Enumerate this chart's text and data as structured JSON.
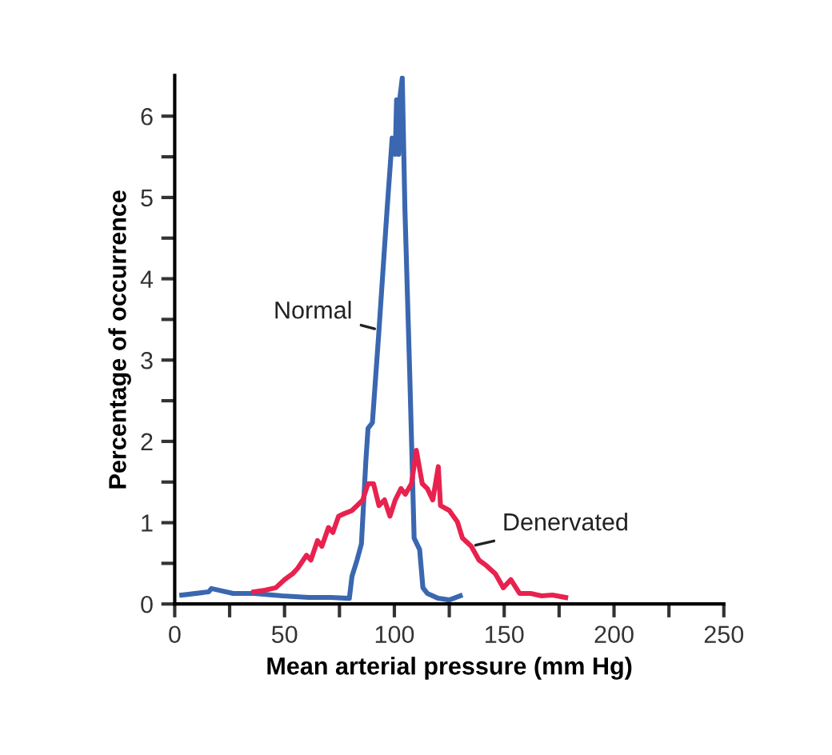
{
  "chart_data": {
    "type": "line",
    "xlabel": "Mean arterial pressure (mm Hg)",
    "ylabel": "Percentage of occurrence",
    "xlim": [
      0,
      250
    ],
    "ylim": [
      0,
      6.5
    ],
    "xticks": [
      0,
      {
        "value": 25,
        "label": null
      },
      50,
      {
        "value": 75,
        "label": null
      },
      100,
      {
        "value": 125,
        "label": null
      },
      150,
      {
        "value": 175,
        "label": null
      },
      200,
      {
        "value": 225,
        "label": null
      },
      250
    ],
    "yticks": [
      0,
      {
        "value": 0.5,
        "label": null
      },
      1,
      {
        "value": 1.5,
        "label": null
      },
      2,
      {
        "value": 2.5,
        "label": null
      },
      3,
      {
        "value": 3.5,
        "label": null
      },
      4,
      {
        "value": 4.5,
        "label": null
      },
      5,
      {
        "value": 5.5,
        "label": null
      },
      6
    ],
    "grid": false,
    "legend": false,
    "marker": "none",
    "line_style": "solid",
    "series": [
      {
        "name": "Normal",
        "color": "#3a67b0",
        "x": [
          3.2,
          15.5,
          16.7,
          26.6,
          36,
          49,
          61,
          71,
          79.5,
          80.7,
          83,
          85,
          87,
          88,
          90,
          93,
          96.7,
          99,
          100.4,
          101,
          102,
          102.4,
          103.6,
          104.8,
          107,
          109,
          111.5,
          113,
          115,
          120,
          125,
          130
        ],
        "values": [
          0.11,
          0.15,
          0.19,
          0.13,
          0.13,
          0.1,
          0.08,
          0.08,
          0.07,
          0.34,
          0.54,
          0.74,
          1.75,
          2.16,
          2.23,
          3.37,
          4.86,
          5.73,
          5.53,
          6.2,
          5.53,
          6.2,
          6.47,
          4.86,
          2.83,
          0.81,
          0.67,
          0.2,
          0.13,
          0.07,
          0.05,
          0.1
        ]
      },
      {
        "name": "Denervated",
        "color": "#e8224f",
        "x": [
          36,
          41,
          46,
          50,
          53.6,
          56,
          60,
          62,
          65,
          67,
          70,
          72,
          74.6,
          77,
          80.7,
          83,
          85.6,
          88,
          90.5,
          93,
          95.5,
          98,
          100.4,
          103,
          105,
          107.8,
          110,
          112.7,
          115,
          117.5,
          120,
          121,
          125,
          128.7,
          131,
          135,
          138.5,
          142,
          146,
          149.6,
          153,
          157,
          162,
          167,
          172,
          178
        ],
        "values": [
          0.15,
          0.17,
          0.2,
          0.3,
          0.37,
          0.44,
          0.6,
          0.54,
          0.78,
          0.71,
          0.94,
          0.88,
          1.08,
          1.11,
          1.15,
          1.21,
          1.28,
          1.48,
          1.48,
          1.21,
          1.28,
          1.08,
          1.28,
          1.42,
          1.35,
          1.48,
          1.89,
          1.48,
          1.42,
          1.28,
          1.69,
          1.21,
          1.15,
          1.01,
          0.81,
          0.71,
          0.54,
          0.47,
          0.37,
          0.2,
          0.3,
          0.13,
          0.13,
          0.1,
          0.11,
          0.08
        ]
      }
    ]
  }
}
